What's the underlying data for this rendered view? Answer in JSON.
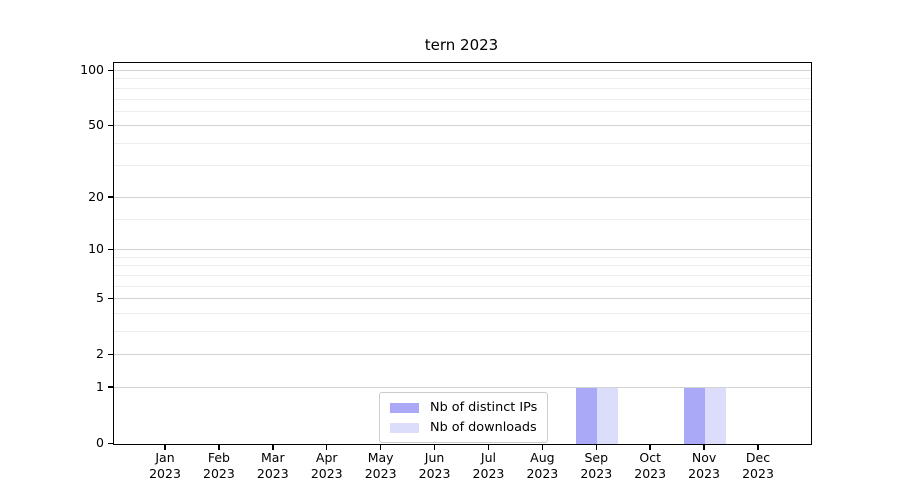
{
  "title": "tern 2023",
  "chart_data": {
    "type": "bar",
    "title": "tern 2023",
    "categories": [
      "Jan",
      "Feb",
      "Mar",
      "Apr",
      "May",
      "Jun",
      "Jul",
      "Aug",
      "Sep",
      "Oct",
      "Nov",
      "Dec"
    ],
    "year_label": "2023",
    "series": [
      {
        "name": "Nb of distinct IPs",
        "color": "#a9a9f8",
        "values": [
          0,
          0,
          0,
          0,
          0,
          0,
          0,
          0,
          1,
          0,
          1,
          0
        ]
      },
      {
        "name": "Nb of downloads",
        "color": "#dcdcfb",
        "values": [
          0,
          0,
          0,
          0,
          0,
          0,
          0,
          0,
          1,
          0,
          1,
          0
        ]
      }
    ],
    "xlabel": "",
    "ylabel": "",
    "y_axis": {
      "scale": "log10(1+y)",
      "tick_values": [
        0,
        1,
        2,
        5,
        10,
        20,
        50,
        100
      ],
      "minor_gridline_values": [
        3,
        4,
        6,
        7,
        8,
        9,
        15,
        30,
        40,
        60,
        70,
        80,
        90
      ],
      "ylim": [
        0,
        105
      ]
    },
    "grid": "horizontal",
    "legend_position": "bottom-center",
    "colors": {
      "major_gridline": "#d2d2d2",
      "minor_gridline": "#ededed",
      "axis": "#000000",
      "legend_border": "#cccccc",
      "background": "#ffffff"
    }
  }
}
